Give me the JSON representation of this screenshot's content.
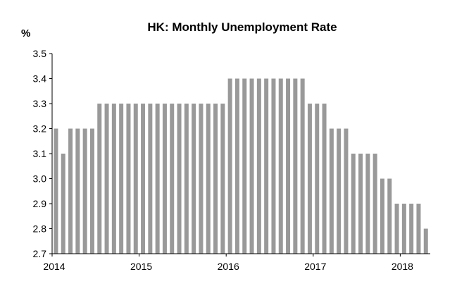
{
  "chart_data": {
    "type": "bar",
    "title": "HK: Monthly Unemployment Rate",
    "ylabel_unit": "%",
    "xlabel": "",
    "ylim": [
      2.7,
      3.5
    ],
    "y_ticks": [
      "2.7",
      "2.8",
      "2.9",
      "3.0",
      "3.1",
      "3.2",
      "3.3",
      "3.4",
      "3.5"
    ],
    "x_ticks": [
      "2014",
      "2015",
      "2016",
      "2017",
      "2018"
    ],
    "grid": false,
    "legend": "none",
    "bar_color": "#999999",
    "categories": [
      "2014-01",
      "2014-02",
      "2014-03",
      "2014-04",
      "2014-05",
      "2014-06",
      "2014-07",
      "2014-08",
      "2014-09",
      "2014-10",
      "2014-11",
      "2014-12",
      "2015-01",
      "2015-02",
      "2015-03",
      "2015-04",
      "2015-05",
      "2015-06",
      "2015-07",
      "2015-08",
      "2015-09",
      "2015-10",
      "2015-11",
      "2015-12",
      "2016-01",
      "2016-02",
      "2016-03",
      "2016-04",
      "2016-05",
      "2016-06",
      "2016-07",
      "2016-08",
      "2016-09",
      "2016-10",
      "2016-11",
      "2016-12",
      "2017-01",
      "2017-02",
      "2017-03",
      "2017-04",
      "2017-05",
      "2017-06",
      "2017-07",
      "2017-08",
      "2017-09",
      "2017-10",
      "2017-11",
      "2017-12",
      "2018-01",
      "2018-02",
      "2018-03",
      "2018-04"
    ],
    "values": [
      3.2,
      3.1,
      3.2,
      3.2,
      3.2,
      3.2,
      3.3,
      3.3,
      3.3,
      3.3,
      3.3,
      3.3,
      3.3,
      3.3,
      3.3,
      3.3,
      3.3,
      3.3,
      3.3,
      3.3,
      3.3,
      3.3,
      3.3,
      3.3,
      3.4,
      3.4,
      3.4,
      3.4,
      3.4,
      3.4,
      3.4,
      3.4,
      3.4,
      3.4,
      3.4,
      3.3,
      3.3,
      3.3,
      3.2,
      3.2,
      3.2,
      3.1,
      3.1,
      3.1,
      3.1,
      3.0,
      3.0,
      2.9,
      2.9,
      2.9,
      2.9,
      2.8
    ]
  }
}
